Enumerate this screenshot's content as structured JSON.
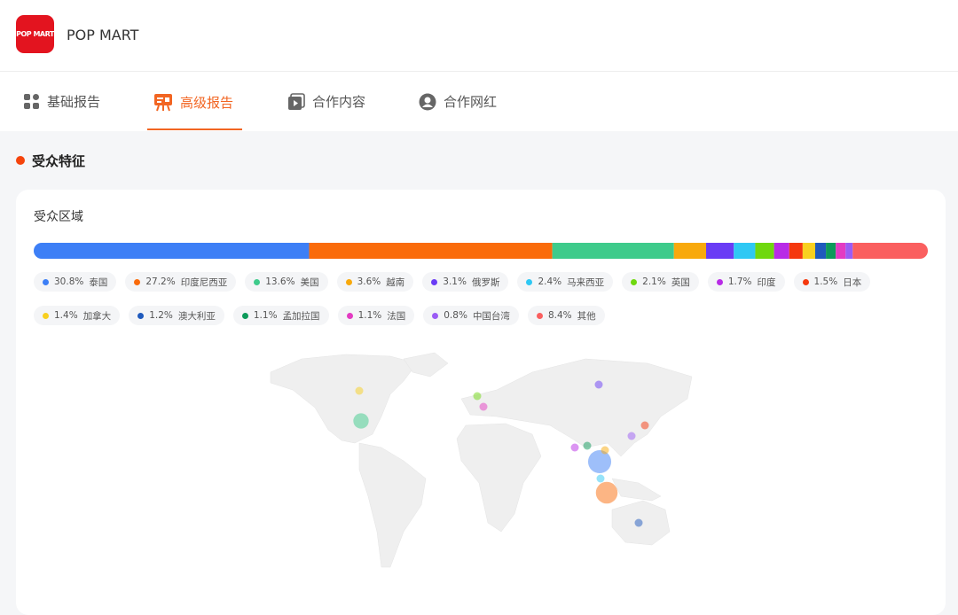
{
  "header": {
    "logo_text": "POP MART",
    "brand": "POP MART"
  },
  "tabs": [
    "基础报告",
    "高级报告",
    "合作内容",
    "合作网红"
  ],
  "section_title": "受众特征",
  "chart_data": {
    "type": "stacked-bar",
    "title": "受众区域",
    "categories": [
      "泰国",
      "印度尼西亚",
      "美国",
      "越南",
      "俄罗斯",
      "马来西亚",
      "英国",
      "印度",
      "日本",
      "加拿大",
      "澳大利亚",
      "孟加拉国",
      "法国",
      "中国台湾",
      "其他"
    ],
    "values": [
      30.8,
      27.2,
      13.6,
      3.6,
      3.1,
      2.4,
      2.1,
      1.7,
      1.5,
      1.4,
      1.2,
      1.1,
      1.1,
      0.8,
      8.4
    ],
    "value_labels": [
      "30.8%",
      "27.2%",
      "13.6%",
      "3.6%",
      "3.1%",
      "2.4%",
      "2.1%",
      "1.7%",
      "1.5%",
      "1.4%",
      "1.2%",
      "1.1%",
      "1.1%",
      "0.8%",
      "8.4%"
    ],
    "colors": [
      "#3d7ff6",
      "#fa6b0a",
      "#3ecb8b",
      "#f8a90c",
      "#6a3cf5",
      "#2ec8f4",
      "#6fd80f",
      "#b82be6",
      "#f5380e",
      "#f8d020",
      "#1f5abd",
      "#0d9a5a",
      "#e33bc2",
      "#9b5cf5",
      "#fa5f5f"
    ]
  }
}
